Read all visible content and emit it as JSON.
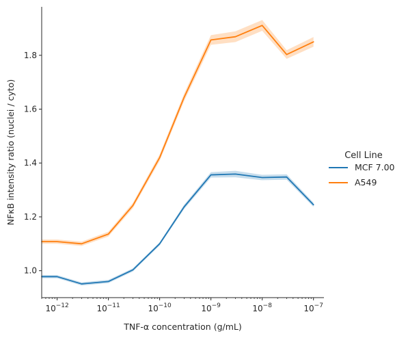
{
  "chart_data": {
    "type": "line",
    "xlabel": "TNF-α concentration (g/mL)",
    "ylabel": "NFκB intensity ratio (nuclei / cyto)",
    "x_scale": "log",
    "x": [
      5e-13,
      1e-12,
      3e-12,
      1e-11,
      3e-11,
      1e-10,
      3e-10,
      1e-09,
      3e-09,
      1e-08,
      3e-08,
      1e-07
    ],
    "xlim": [
      5e-13,
      1.6e-07
    ],
    "ylim": [
      0.9,
      1.98
    ],
    "x_ticks": [
      {
        "value": 1e-12,
        "base": "10",
        "exp": "−12"
      },
      {
        "value": 1e-11,
        "base": "10",
        "exp": "−11"
      },
      {
        "value": 1e-10,
        "base": "10",
        "exp": "−10"
      },
      {
        "value": 1e-09,
        "base": "10",
        "exp": "−9"
      },
      {
        "value": 1e-08,
        "base": "10",
        "exp": "−8"
      },
      {
        "value": 1e-07,
        "base": "10",
        "exp": "−7"
      }
    ],
    "y_ticks": [
      {
        "value": 1.0,
        "label": "1.0"
      },
      {
        "value": 1.2,
        "label": "1.2"
      },
      {
        "value": 1.4,
        "label": "1.4"
      },
      {
        "value": 1.6,
        "label": "1.6"
      },
      {
        "value": 1.8,
        "label": "1.8"
      }
    ],
    "legend": {
      "title": "Cell Line",
      "placement": "right"
    },
    "series": [
      {
        "name": "MCF 7.00",
        "color": "#1f77b4",
        "values": [
          0.978,
          0.978,
          0.951,
          0.96,
          1.003,
          1.1,
          1.237,
          1.356,
          1.359,
          1.346,
          1.348,
          1.245
        ],
        "ci_halfwidth": [
          0.006,
          0.006,
          0.006,
          0.006,
          0.006,
          0.006,
          0.008,
          0.01,
          0.012,
          0.01,
          0.01,
          0.008
        ]
      },
      {
        "name": "A549",
        "color": "#ff7f0e",
        "values": [
          1.108,
          1.108,
          1.1,
          1.136,
          1.242,
          1.42,
          1.644,
          1.857,
          1.869,
          1.911,
          1.803,
          1.85
        ],
        "ci_halfwidth": [
          0.008,
          0.008,
          0.008,
          0.009,
          0.01,
          0.012,
          0.014,
          0.018,
          0.02,
          0.02,
          0.016,
          0.018
        ]
      }
    ]
  }
}
